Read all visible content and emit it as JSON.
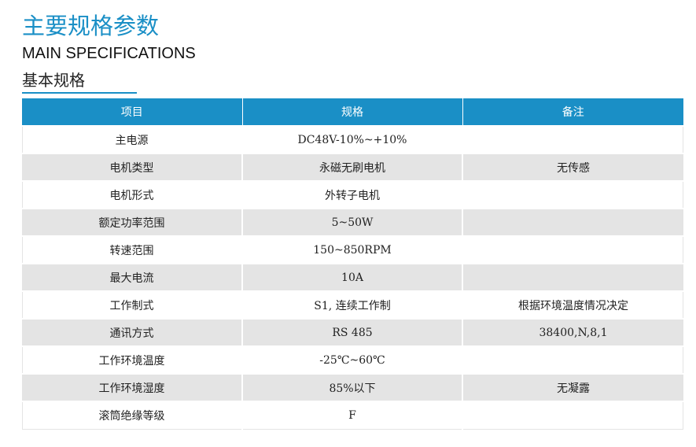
{
  "header": {
    "title_cn": "主要规格参数",
    "title_en": "MAIN SPECIFICATIONS",
    "section_title": "基本规格"
  },
  "colors": {
    "accent": "#1a8fc6",
    "row_shade": "#e4e4e4"
  },
  "table": {
    "columns": [
      "项目",
      "规格",
      "备注"
    ],
    "rows": [
      {
        "item": "主电源",
        "spec": "DC48V-10%~+10%",
        "note": ""
      },
      {
        "item": "电机类型",
        "spec": "永磁无刷电机",
        "note": "无传感"
      },
      {
        "item": "电机形式",
        "spec": "外转子电机",
        "note": ""
      },
      {
        "item": "额定功率范围",
        "spec": "5~50W",
        "note": ""
      },
      {
        "item": "转速范围",
        "spec": "150~850RPM",
        "note": ""
      },
      {
        "item": "最大电流",
        "spec": "10A",
        "note": ""
      },
      {
        "item": "工作制式",
        "spec": "S1, 连续工作制",
        "note": "根据环境温度情况决定"
      },
      {
        "item": "通讯方式",
        "spec": "RS 485",
        "note": "38400,N,8,1"
      },
      {
        "item": "工作环境温度",
        "spec": "-25℃~60℃",
        "note": ""
      },
      {
        "item": "工作环境湿度",
        "spec": "85%以下",
        "note": "无凝露"
      },
      {
        "item": "滚筒绝缘等级",
        "spec": "F",
        "note": ""
      }
    ]
  }
}
